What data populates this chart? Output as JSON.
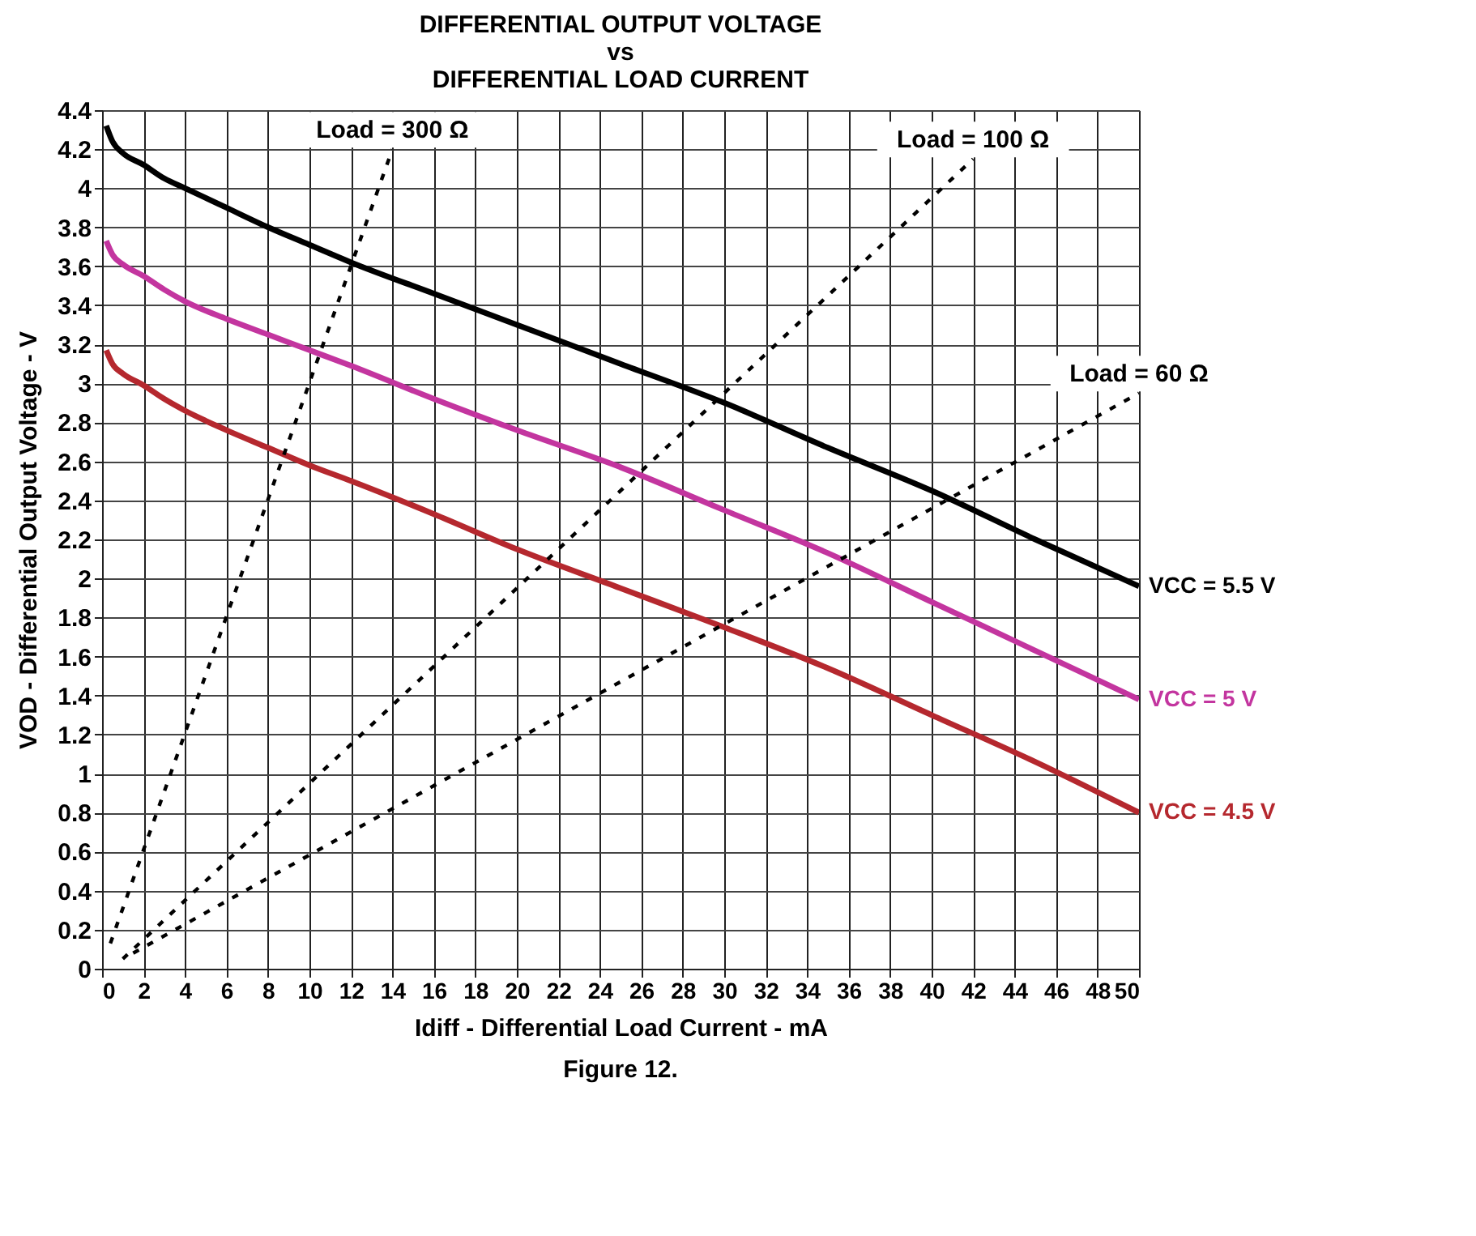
{
  "chart_data": {
    "type": "line",
    "title": "DIFFERENTIAL OUTPUT VOLTAGE\nvs\nDIFFERENTIAL LOAD CURRENT",
    "xlabel": "Idiff - Differential Load Current  - mA",
    "ylabel": "VOD - Differential Output Voltage - V",
    "annotations": [
      "Figure 12."
    ],
    "xlim": [
      0,
      50
    ],
    "xticks": [
      0,
      2,
      4,
      6,
      8,
      10,
      12,
      14,
      16,
      18,
      20,
      22,
      24,
      26,
      28,
      30,
      32,
      34,
      36,
      38,
      40,
      42,
      44,
      46,
      48,
      50
    ],
    "ylim": [
      0,
      4.4
    ],
    "yticks": [
      0,
      0.2,
      0.4,
      0.6,
      0.8,
      1,
      1.2,
      1.4,
      1.6,
      1.8,
      2,
      2.2,
      2.4,
      2.6,
      2.8,
      3,
      3.2,
      3.4,
      3.6,
      3.8,
      4,
      4.2,
      4.4
    ],
    "grid": true,
    "legend": false,
    "line_style": "solid",
    "series": [
      {
        "name": "VCC = 5.5 V",
        "color": "#000000",
        "x": [
          0.2,
          0.5,
          1,
          2,
          3,
          4,
          6,
          8,
          10,
          12,
          16,
          20,
          25,
          30,
          35,
          40,
          45,
          50
        ],
        "values": [
          4.32,
          4.24,
          4.18,
          4.12,
          4.05,
          4.0,
          3.9,
          3.8,
          3.71,
          3.62,
          3.46,
          3.3,
          3.1,
          2.9,
          2.67,
          2.45,
          2.2,
          1.96
        ]
      },
      {
        "name": "VCC = 5 V",
        "color": "#c3359f",
        "x": [
          0.2,
          0.5,
          1,
          2,
          3,
          4,
          6,
          8,
          10,
          12,
          16,
          20,
          25,
          30,
          35,
          40,
          45,
          50
        ],
        "values": [
          3.73,
          3.66,
          3.61,
          3.55,
          3.48,
          3.42,
          3.33,
          3.25,
          3.17,
          3.09,
          2.92,
          2.76,
          2.57,
          2.35,
          2.13,
          1.88,
          1.63,
          1.38
        ]
      },
      {
        "name": "VCC = 4.5 V",
        "color": "#b5282e",
        "x": [
          0.2,
          0.5,
          1,
          2,
          3,
          4,
          6,
          8,
          10,
          12,
          16,
          20,
          25,
          30,
          35,
          40,
          45,
          50
        ],
        "values": [
          3.17,
          3.1,
          3.05,
          2.99,
          2.92,
          2.86,
          2.76,
          2.67,
          2.58,
          2.5,
          2.33,
          2.15,
          1.95,
          1.75,
          1.54,
          1.3,
          1.06,
          0.8
        ]
      },
      {
        "name": "Load = 300 Ω",
        "color": "#000000",
        "line_style": "dashed",
        "x": [
          0.4,
          14
        ],
        "values": [
          0.13,
          4.2
        ]
      },
      {
        "name": "Load = 100 Ω",
        "color": "#000000",
        "line_style": "dashed",
        "x": [
          1,
          42
        ],
        "values": [
          0.05,
          4.15
        ]
      },
      {
        "name": "Load = 60 Ω",
        "color": "#000000",
        "line_style": "dashed",
        "x": [
          1.5,
          50
        ],
        "values": [
          0.08,
          2.95
        ]
      }
    ]
  }
}
